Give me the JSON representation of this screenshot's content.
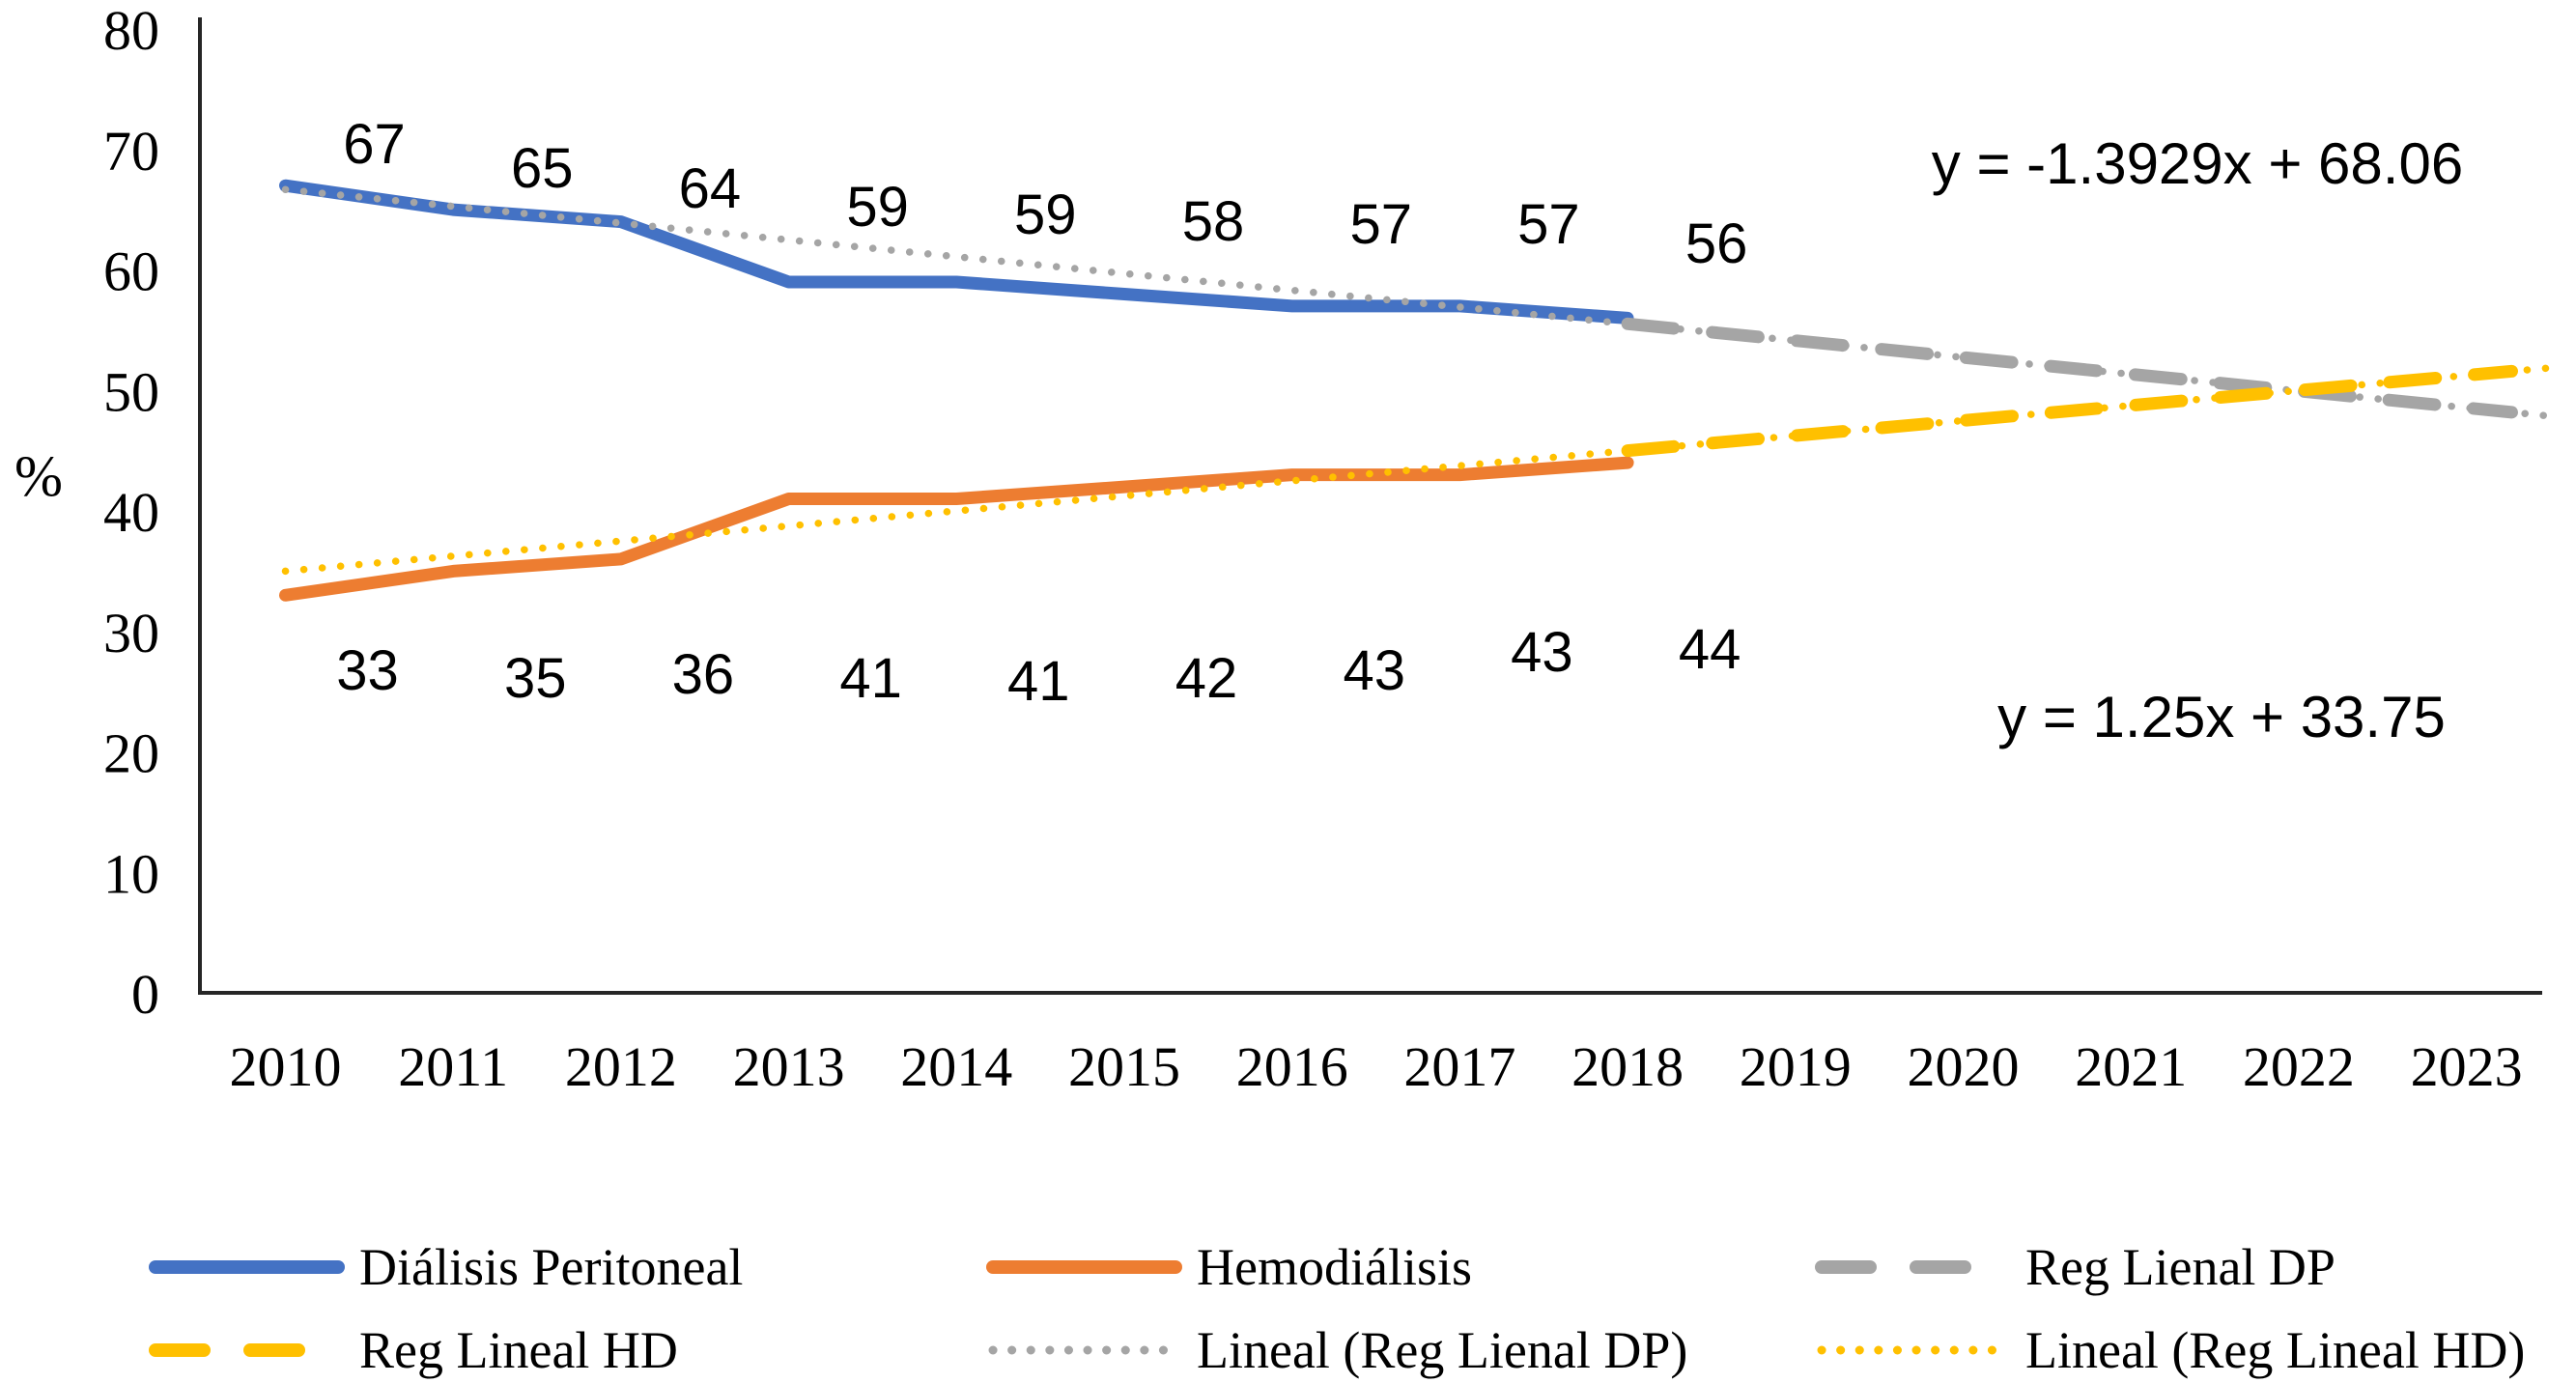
{
  "chart_data": {
    "type": "line",
    "title": "",
    "xlabel": "",
    "ylabel": "%",
    "ylim": [
      0,
      80
    ],
    "yticks": [
      0,
      10,
      20,
      30,
      40,
      50,
      60,
      70,
      80
    ],
    "categories": [
      2010,
      2011,
      2012,
      2013,
      2014,
      2015,
      2016,
      2017,
      2018,
      2019,
      2020,
      2021,
      2022,
      2023
    ],
    "grid": false,
    "legend_position": "bottom",
    "series": [
      {
        "name": "Diálisis Peritoneal",
        "style": "solid",
        "color": "#4472C4",
        "years": [
          2010,
          2011,
          2012,
          2013,
          2014,
          2015,
          2016,
          2017,
          2018
        ],
        "values": [
          67,
          65,
          64,
          59,
          59,
          58,
          57,
          57,
          56
        ]
      },
      {
        "name": "Hemodiálisis",
        "style": "solid",
        "color": "#ED7D31",
        "years": [
          2010,
          2011,
          2012,
          2013,
          2014,
          2015,
          2016,
          2017,
          2018
        ],
        "values": [
          33,
          35,
          36,
          41,
          41,
          42,
          43,
          43,
          44
        ]
      },
      {
        "name": "Reg Lienal DP",
        "style": "dashed",
        "color": "#A5A5A5",
        "trend": {
          "slope": -1.3929,
          "intercept": 68.06,
          "x_start": 9,
          "x_end": 14.27
        }
      },
      {
        "name": "Reg Lineal HD",
        "style": "dashed",
        "color": "#FFC000",
        "trend": {
          "slope": 1.25,
          "intercept": 33.75,
          "x_start": 9,
          "x_end": 14.27
        }
      },
      {
        "name": "Lineal (Reg Lienal DP)",
        "style": "dotted",
        "color": "#A5A5A5",
        "trend": {
          "slope": -1.3929,
          "intercept": 68.06,
          "x_start": 1,
          "x_end": 14.5
        }
      },
      {
        "name": "Lineal (Reg Lineal HD)",
        "style": "dotted",
        "color": "#FFC000",
        "trend": {
          "slope": 1.25,
          "intercept": 33.75,
          "x_start": 1,
          "x_end": 14.5
        }
      }
    ],
    "annotations": [
      {
        "text": "y = -1.3929x + 68.06"
      },
      {
        "text": "y = 1.25x + 33.75"
      }
    ]
  },
  "legend": {
    "items": [
      {
        "label": "Diálisis Peritoneal",
        "style": "solid",
        "color": "#4472C4"
      },
      {
        "label": "Hemodiálisis",
        "style": "solid",
        "color": "#ED7D31"
      },
      {
        "label": "Reg Lienal DP",
        "style": "dashed",
        "color": "#A5A5A5"
      },
      {
        "label": "Reg Lineal HD",
        "style": "dashed",
        "color": "#FFC000"
      },
      {
        "label": "Lineal (Reg Lienal DP)",
        "style": "dotted",
        "color": "#A5A5A5"
      },
      {
        "label": "Lineal (Reg Lineal HD)",
        "style": "dotted",
        "color": "#FFC000"
      }
    ]
  },
  "colors": {
    "dp_blue": "#4472C4",
    "hd_orange": "#ED7D31",
    "trend_gray": "#A5A5A5",
    "trend_yellow": "#FFC000",
    "axis": "#262626"
  }
}
